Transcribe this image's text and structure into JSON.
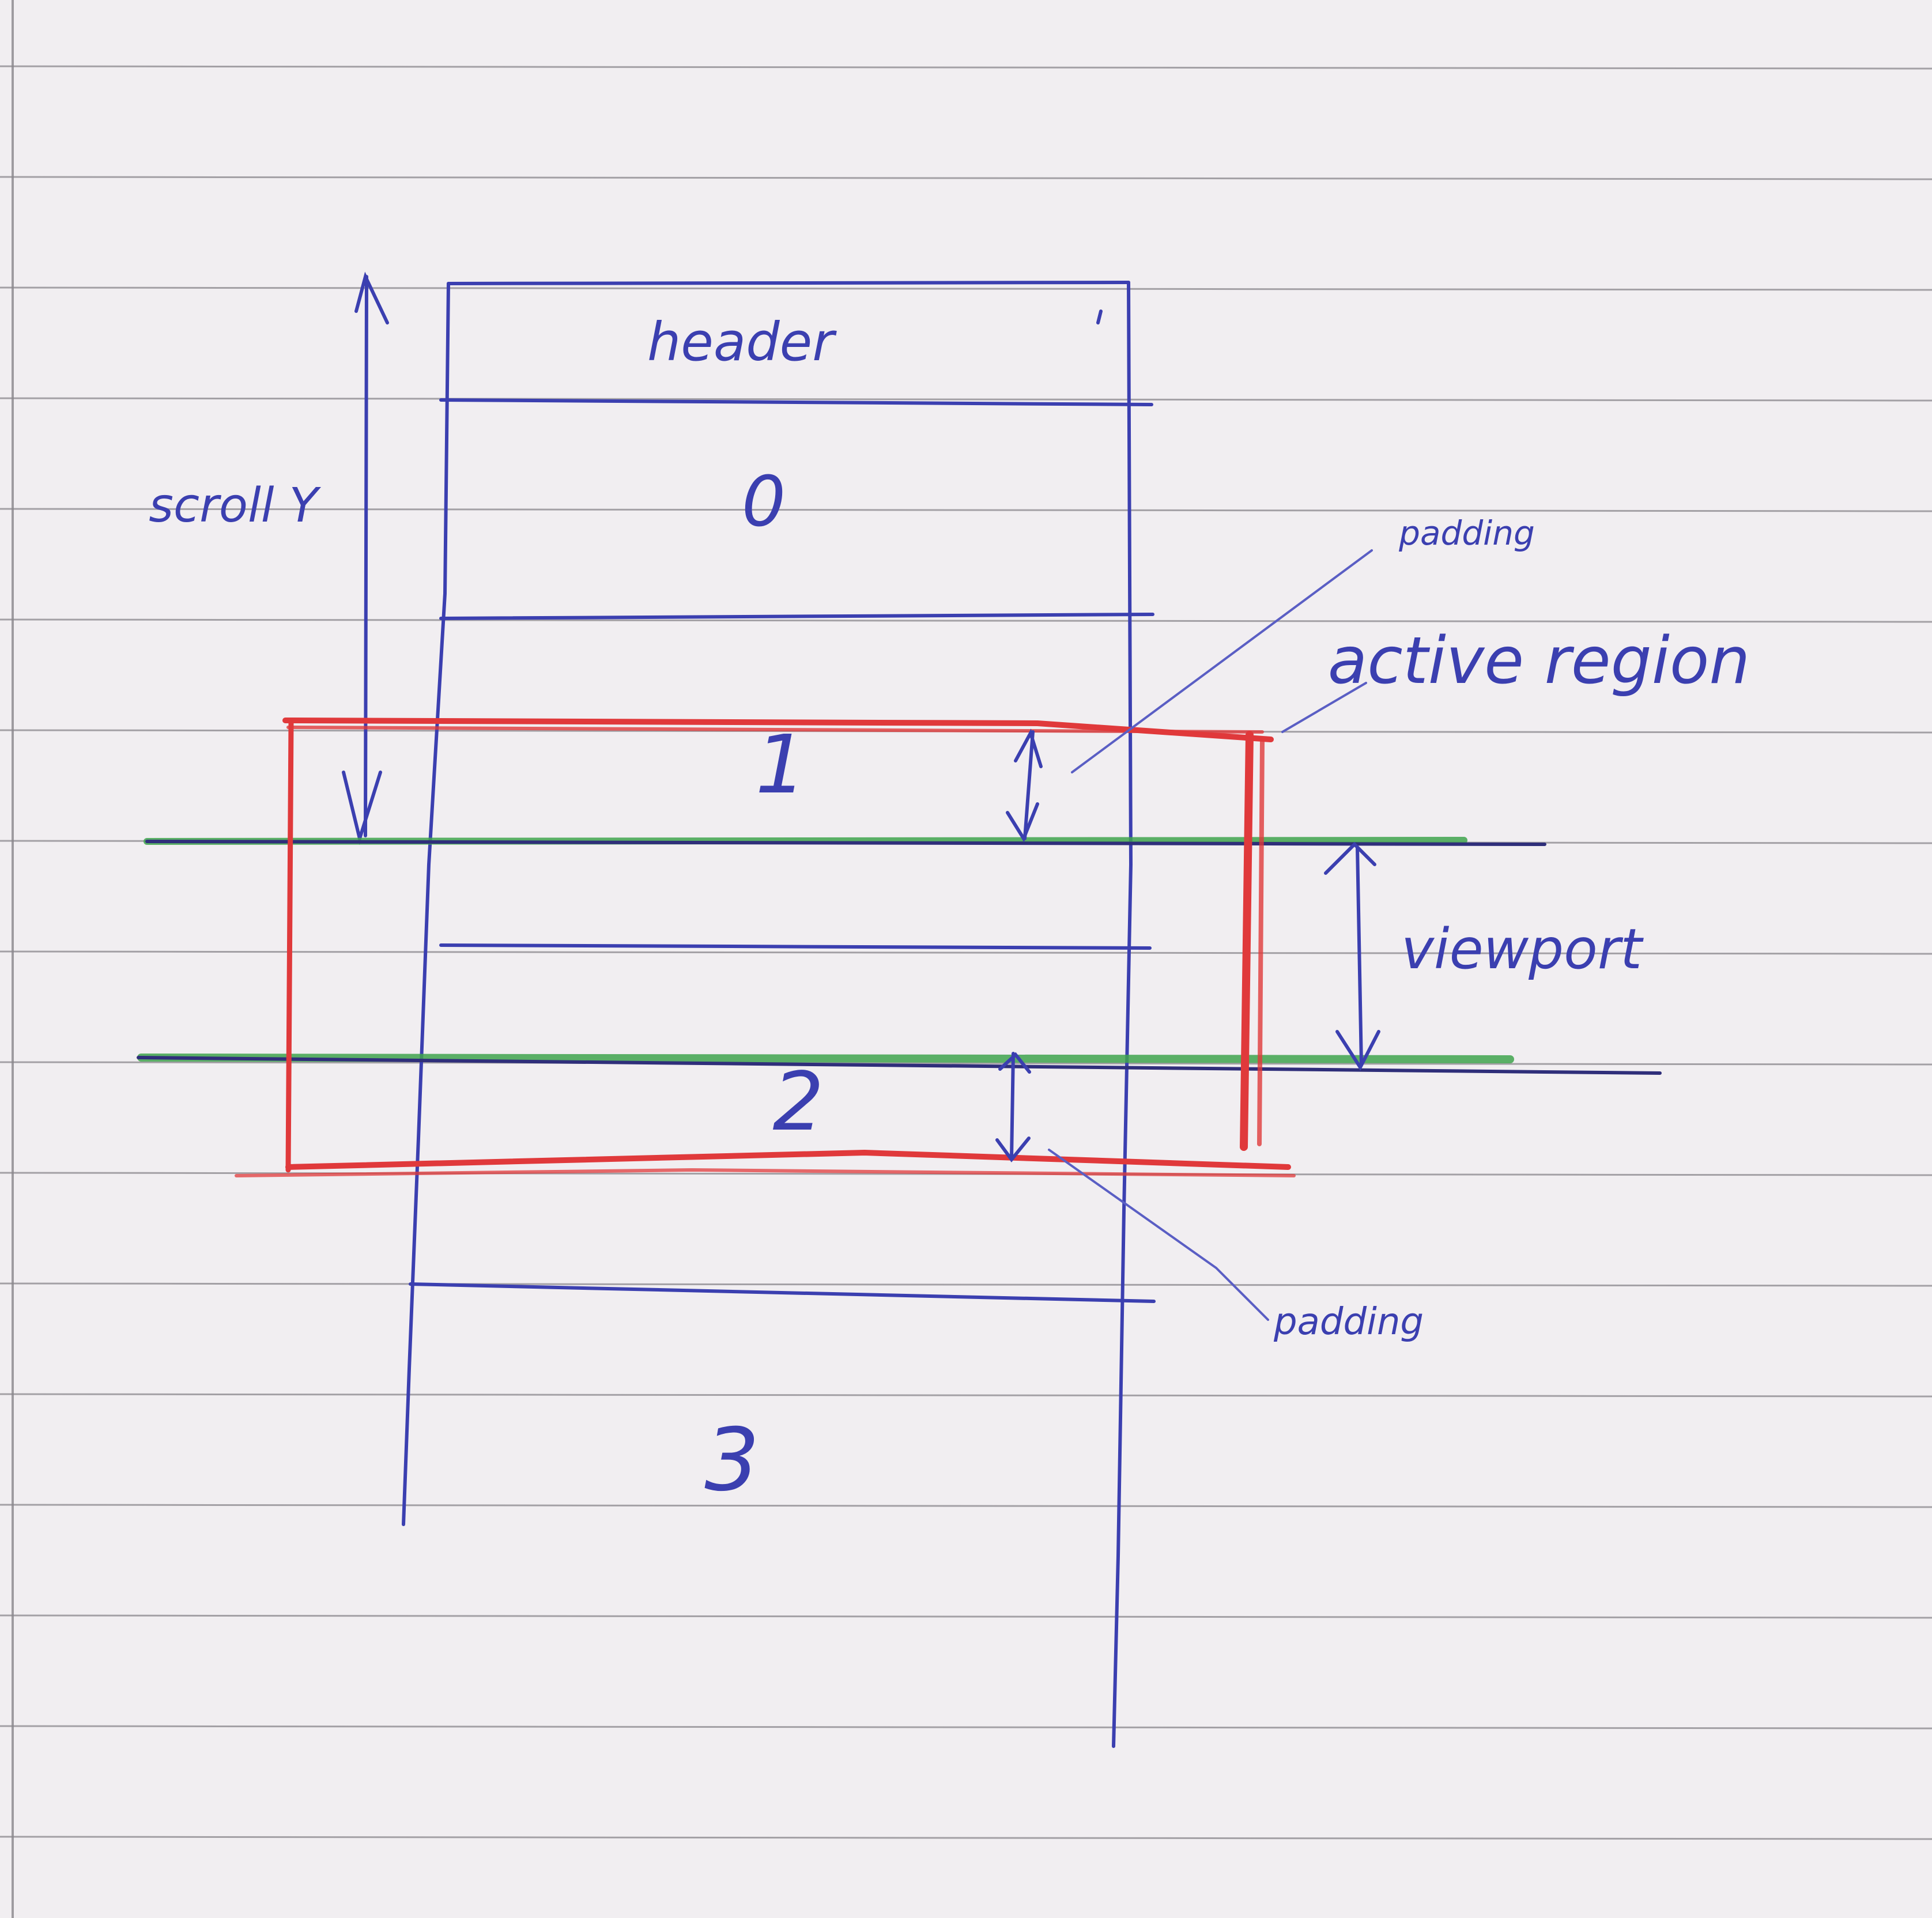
{
  "diagram": {
    "labels": {
      "header": "header",
      "row0": "0",
      "row1": "1",
      "row2": "2",
      "row3": "3",
      "scroll_y": "scroll Y",
      "padding_top": "padding",
      "padding_bottom": "padding",
      "active_region": "active region",
      "viewport": "viewport"
    },
    "colors": {
      "paper": "#f1eef1",
      "rule_lines": "#8a878c",
      "ink_blue": "#3b3fb0",
      "ink_red": "#e0393b",
      "ink_green": "#3fa34d"
    }
  }
}
